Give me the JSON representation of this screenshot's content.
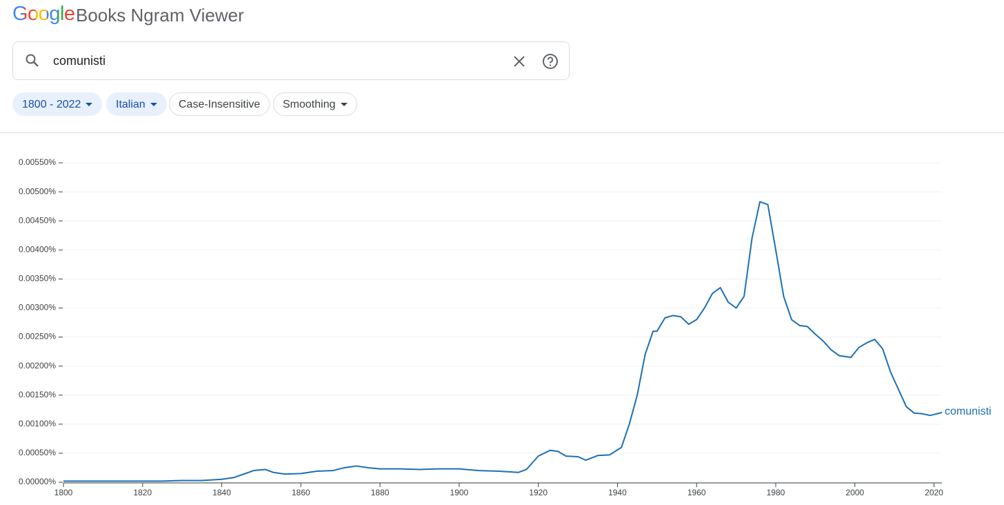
{
  "header": {
    "logo": "Google",
    "product": "Books Ngram Viewer"
  },
  "search": {
    "query": "comunisti"
  },
  "filters": [
    "1800 - 2022",
    "Italian",
    "Case-Insensitive",
    "Smoothing"
  ],
  "chart_data": {
    "type": "line",
    "x": [
      1800,
      1805,
      1810,
      1815,
      1820,
      1825,
      1830,
      1835,
      1840,
      1843,
      1846,
      1848,
      1851,
      1853,
      1856,
      1860,
      1864,
      1868,
      1871,
      1874,
      1877,
      1880,
      1885,
      1890,
      1895,
      1900,
      1905,
      1910,
      1915,
      1917,
      1920,
      1923,
      1925,
      1927,
      1930,
      1932,
      1935,
      1938,
      1941,
      1943,
      1945,
      1947,
      1949,
      1950,
      1952,
      1954,
      1956,
      1958,
      1960,
      1962,
      1964,
      1966,
      1968,
      1970,
      1972,
      1974,
      1976,
      1978,
      1980,
      1982,
      1984,
      1986,
      1988,
      1990,
      1992,
      1994,
      1996,
      1999,
      2001,
      2003,
      2005,
      2007,
      2009,
      2011,
      2013,
      2015,
      2017,
      2019,
      2022
    ],
    "series": [
      {
        "name": "comunisti",
        "color": "#1a6fb5",
        "values": [
          2e-05,
          2e-05,
          2e-05,
          2e-05,
          2e-05,
          2e-05,
          3e-05,
          3e-05,
          5e-05,
          8e-05,
          0.00015,
          0.0002,
          0.00022,
          0.00017,
          0.00014,
          0.00015,
          0.00019,
          0.0002,
          0.00025,
          0.00028,
          0.00025,
          0.00023,
          0.00023,
          0.00022,
          0.00023,
          0.00023,
          0.0002,
          0.00019,
          0.00017,
          0.00022,
          0.00045,
          0.00055,
          0.00053,
          0.00045,
          0.00044,
          0.00038,
          0.00046,
          0.00047,
          0.0006,
          0.001,
          0.0015,
          0.0022,
          0.0026,
          0.0026,
          0.00283,
          0.00287,
          0.00285,
          0.00272,
          0.0028,
          0.003,
          0.00325,
          0.00335,
          0.0031,
          0.003,
          0.0032,
          0.0042,
          0.00483,
          0.00478,
          0.004,
          0.0032,
          0.0028,
          0.0027,
          0.00268,
          0.00255,
          0.00243,
          0.00228,
          0.00218,
          0.00215,
          0.00232,
          0.0024,
          0.00246,
          0.0023,
          0.0019,
          0.0016,
          0.0013,
          0.00119,
          0.00118,
          0.00115,
          0.0012
        ]
      }
    ],
    "xlim": [
      1800,
      2022
    ],
    "xticks": [
      1800,
      1820,
      1840,
      1860,
      1880,
      1900,
      1920,
      1940,
      1960,
      1980,
      2000,
      2020
    ],
    "ylim": [
      0,
      0.0055
    ],
    "yticks": [
      {
        "value": 0,
        "label": "0.00000%"
      },
      {
        "value": 0.0005,
        "label": "0.00050%"
      },
      {
        "value": 0.001,
        "label": "0.00100%"
      },
      {
        "value": 0.0015,
        "label": "0.00150%"
      },
      {
        "value": 0.002,
        "label": "0.00200%"
      },
      {
        "value": 0.0025,
        "label": "0.00250%"
      },
      {
        "value": 0.003,
        "label": "0.00300%"
      },
      {
        "value": 0.0035,
        "label": "0.00350%"
      },
      {
        "value": 0.004,
        "label": "0.00400%"
      },
      {
        "value": 0.0045,
        "label": "0.00450%"
      },
      {
        "value": 0.005,
        "label": "0.00500%"
      },
      {
        "value": 0.0055,
        "label": "0.00550%"
      }
    ],
    "grid": true
  }
}
